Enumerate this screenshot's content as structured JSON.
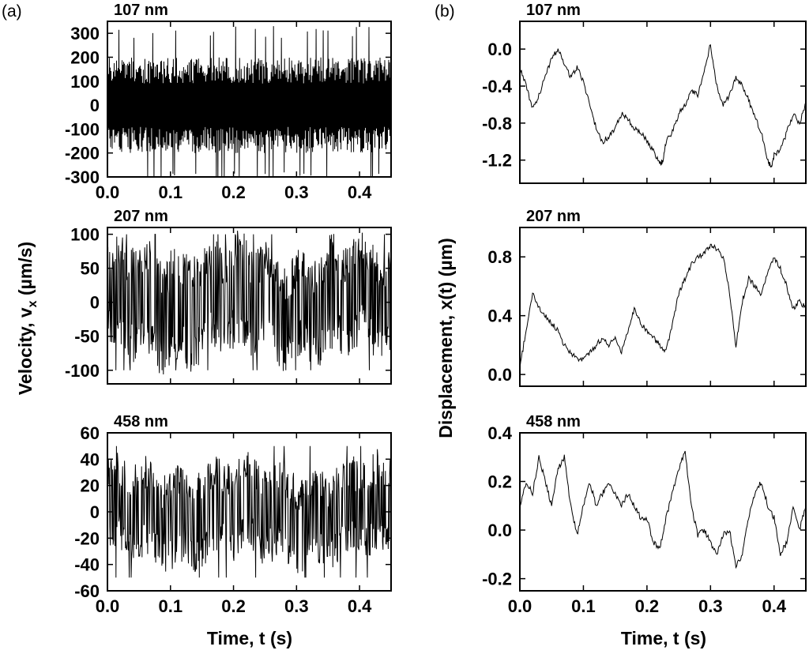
{
  "panel_labels": {
    "a": "(a)",
    "b": "(b)"
  },
  "x_axis_label": "Time, t (s)",
  "left_ylabel": {
    "main": "Velocity, v",
    "sub": "x",
    "unit": " (µm/s)"
  },
  "right_ylabel": "Displacement, x(t) (µm)",
  "chart_data": [
    {
      "type": "line",
      "column": "a",
      "row": 0,
      "title": "107 nm",
      "xlim": [
        0,
        0.45
      ],
      "ylim": [
        -300,
        350
      ],
      "x_ticks": [
        0.0,
        0.1,
        0.2,
        0.3,
        0.4
      ],
      "x_tick_labels": [
        "0.0",
        "0.1",
        "0.2",
        "0.3",
        "0.4"
      ],
      "y_ticks": [
        -300,
        -200,
        -100,
        0,
        100,
        200,
        300
      ],
      "y_tick_labels": [
        "-300",
        "-200",
        "-100",
        "0",
        "100",
        "200",
        "300"
      ],
      "signal": "velocity_dense",
      "amplitude": 200,
      "spike": 330,
      "n_samples": 720,
      "series": [
        {
          "name": "",
          "x": [],
          "y": []
        }
      ]
    },
    {
      "type": "line",
      "column": "a",
      "row": 1,
      "title": "207 nm",
      "xlim": [
        0,
        0.45
      ],
      "ylim": [
        -120,
        110
      ],
      "x_ticks": [
        0.0,
        0.1,
        0.2,
        0.3,
        0.4
      ],
      "x_tick_labels": [
        "",
        "",
        "",
        "",
        ""
      ],
      "y_ticks": [
        -100,
        -50,
        0,
        50,
        100
      ],
      "y_tick_labels": [
        "-100",
        "-50",
        "0",
        "50",
        "100"
      ],
      "signal": "velocity_switching",
      "amplitude": 85,
      "spike": 100,
      "n_samples": 640,
      "series": [
        {
          "name": "",
          "x": [],
          "y": []
        }
      ]
    },
    {
      "type": "line",
      "column": "a",
      "row": 2,
      "title": "458 nm",
      "xlim": [
        0,
        0.45
      ],
      "ylim": [
        -60,
        60
      ],
      "x_ticks": [
        0.0,
        0.1,
        0.2,
        0.3,
        0.4
      ],
      "x_tick_labels": [
        "0.0",
        "0.1",
        "0.2",
        "0.3",
        "0.4"
      ],
      "y_ticks": [
        -60,
        -40,
        -20,
        0,
        20,
        40,
        60
      ],
      "y_tick_labels": [
        "-60",
        "-40",
        "-20",
        "0",
        "20",
        "40",
        "60"
      ],
      "signal": "velocity_switching",
      "amplitude": 38,
      "spike": 50,
      "n_samples": 600,
      "series": [
        {
          "name": "",
          "x": [],
          "y": []
        }
      ]
    },
    {
      "type": "line",
      "column": "b",
      "row": 0,
      "title": "107 nm",
      "xlim": [
        0,
        0.45
      ],
      "ylim": [
        -1.45,
        0.3
      ],
      "x_ticks": [
        0.0,
        0.1,
        0.2,
        0.3,
        0.4
      ],
      "x_tick_labels": [
        "",
        "",
        "",
        "",
        ""
      ],
      "y_ticks": [
        -1.2,
        -0.8,
        -0.4,
        0.0
      ],
      "y_tick_labels": [
        "-1.2",
        "-0.8",
        "-0.4",
        "0.0"
      ],
      "signal": "displacement",
      "series": [
        {
          "name": "",
          "x": [
            0.0,
            0.01,
            0.02,
            0.03,
            0.04,
            0.05,
            0.06,
            0.07,
            0.08,
            0.09,
            0.1,
            0.11,
            0.12,
            0.13,
            0.14,
            0.15,
            0.16,
            0.17,
            0.18,
            0.19,
            0.2,
            0.21,
            0.22,
            0.225,
            0.23,
            0.24,
            0.25,
            0.26,
            0.27,
            0.28,
            0.29,
            0.3,
            0.31,
            0.32,
            0.33,
            0.34,
            0.35,
            0.36,
            0.37,
            0.38,
            0.39,
            0.395,
            0.4,
            0.41,
            0.42,
            0.43,
            0.44,
            0.45
          ],
          "y": [
            -0.2,
            -0.4,
            -0.65,
            -0.5,
            -0.3,
            -0.1,
            0.0,
            -0.15,
            -0.3,
            -0.2,
            -0.35,
            -0.6,
            -0.85,
            -1.0,
            -0.95,
            -0.85,
            -0.7,
            -0.75,
            -0.85,
            -0.9,
            -1.0,
            -1.1,
            -1.25,
            -1.2,
            -1.0,
            -0.9,
            -0.7,
            -0.6,
            -0.45,
            -0.5,
            -0.25,
            0.05,
            -0.4,
            -0.6,
            -0.5,
            -0.3,
            -0.4,
            -0.55,
            -0.75,
            -0.9,
            -1.2,
            -1.28,
            -1.15,
            -1.1,
            -0.9,
            -0.7,
            -0.8,
            -0.6
          ]
        }
      ]
    },
    {
      "type": "line",
      "column": "b",
      "row": 1,
      "title": "207 nm",
      "xlim": [
        0,
        0.45
      ],
      "ylim": [
        -0.08,
        1.0
      ],
      "x_ticks": [
        0.0,
        0.1,
        0.2,
        0.3,
        0.4
      ],
      "x_tick_labels": [
        "",
        "",
        "",
        "",
        ""
      ],
      "y_ticks": [
        0.0,
        0.4,
        0.8
      ],
      "y_tick_labels": [
        "0.0",
        "0.4",
        "0.8"
      ],
      "signal": "displacement",
      "series": [
        {
          "name": "",
          "x": [
            0.0,
            0.01,
            0.02,
            0.03,
            0.04,
            0.05,
            0.06,
            0.07,
            0.08,
            0.09,
            0.1,
            0.11,
            0.12,
            0.13,
            0.14,
            0.15,
            0.16,
            0.17,
            0.18,
            0.19,
            0.2,
            0.21,
            0.22,
            0.23,
            0.24,
            0.25,
            0.26,
            0.27,
            0.28,
            0.29,
            0.3,
            0.31,
            0.32,
            0.33,
            0.34,
            0.35,
            0.36,
            0.37,
            0.38,
            0.39,
            0.4,
            0.41,
            0.42,
            0.43,
            0.44,
            0.45
          ],
          "y": [
            0.05,
            0.3,
            0.55,
            0.45,
            0.4,
            0.35,
            0.3,
            0.2,
            0.15,
            0.1,
            0.1,
            0.15,
            0.2,
            0.25,
            0.2,
            0.25,
            0.15,
            0.3,
            0.45,
            0.35,
            0.3,
            0.25,
            0.2,
            0.15,
            0.35,
            0.55,
            0.65,
            0.75,
            0.8,
            0.82,
            0.88,
            0.85,
            0.8,
            0.55,
            0.2,
            0.5,
            0.65,
            0.6,
            0.55,
            0.7,
            0.8,
            0.72,
            0.6,
            0.45,
            0.5,
            0.45
          ]
        }
      ]
    },
    {
      "type": "line",
      "column": "b",
      "row": 2,
      "title": "458 nm",
      "xlim": [
        0,
        0.45
      ],
      "ylim": [
        -0.25,
        0.4
      ],
      "x_ticks": [
        0.0,
        0.1,
        0.2,
        0.3,
        0.4
      ],
      "x_tick_labels": [
        "0.0",
        "0.1",
        "0.2",
        "0.3",
        "0.4"
      ],
      "y_ticks": [
        -0.2,
        0.0,
        0.2,
        0.4
      ],
      "y_tick_labels": [
        "-0.2",
        "0.0",
        "0.2",
        "0.4"
      ],
      "signal": "displacement",
      "series": [
        {
          "name": "",
          "x": [
            0.0,
            0.01,
            0.02,
            0.03,
            0.04,
            0.05,
            0.06,
            0.07,
            0.08,
            0.09,
            0.1,
            0.11,
            0.12,
            0.13,
            0.14,
            0.15,
            0.16,
            0.17,
            0.18,
            0.19,
            0.2,
            0.21,
            0.22,
            0.23,
            0.24,
            0.25,
            0.26,
            0.27,
            0.28,
            0.29,
            0.3,
            0.31,
            0.32,
            0.33,
            0.34,
            0.35,
            0.36,
            0.37,
            0.38,
            0.39,
            0.4,
            0.41,
            0.42,
            0.43,
            0.44,
            0.45
          ],
          "y": [
            0.1,
            0.2,
            0.15,
            0.3,
            0.2,
            0.1,
            0.25,
            0.3,
            0.1,
            -0.02,
            0.1,
            0.2,
            0.1,
            0.15,
            0.2,
            0.15,
            0.1,
            0.15,
            0.1,
            0.05,
            0.05,
            -0.05,
            -0.08,
            0.05,
            0.15,
            0.25,
            0.32,
            0.1,
            -0.02,
            0.0,
            -0.05,
            -0.1,
            -0.02,
            0.0,
            -0.15,
            -0.1,
            0.05,
            0.15,
            0.2,
            0.1,
            0.05,
            -0.1,
            -0.05,
            0.1,
            0.0,
            0.1
          ]
        }
      ]
    }
  ]
}
